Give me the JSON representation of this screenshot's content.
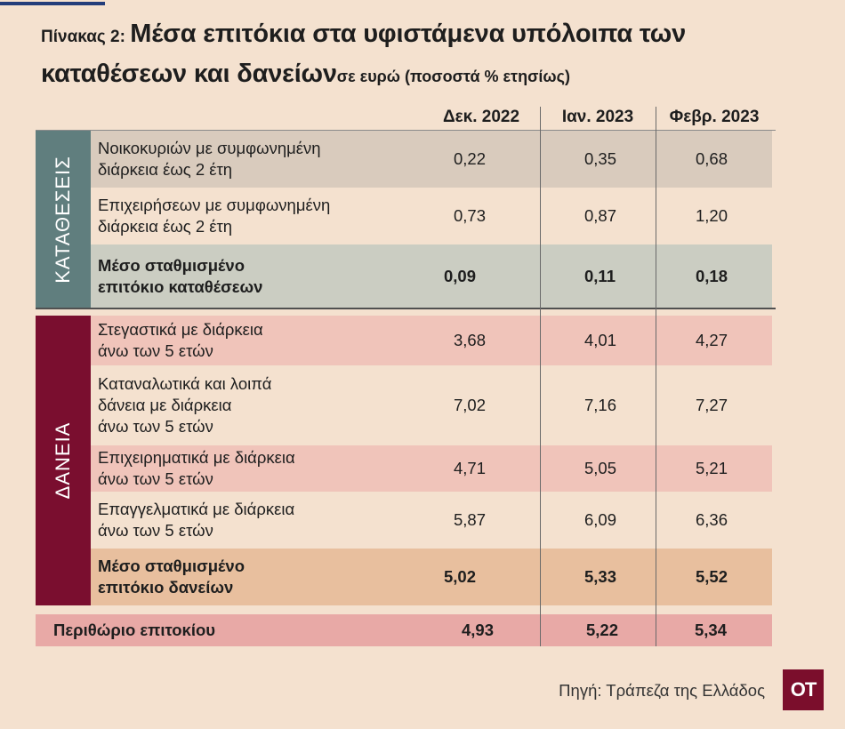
{
  "title": {
    "prefix": "Πίνακας 2: ",
    "main": "Μέσα επιτόκια στα υφιστάμενα υπόλοιπα των καταθέσεων και δανείων",
    "unit": "σε ευρώ (ποσοστά % ετησίως)"
  },
  "colors": {
    "background": "#f4e1cf",
    "deposits_band": "#607e7e",
    "loans_band": "#7a0e2f",
    "deposits_row_grey": "#d9cbbd",
    "deposits_avg_row": "#cbcdc2",
    "loans_row_pink": "#f0c4ba",
    "loans_avg_row": "#e8bf9e",
    "margin_row": "#e8a9a6",
    "title_bar": "#233d7a"
  },
  "chart_data": {
    "type": "table",
    "columns": [
      "Δεκ. 2022",
      "Ιαν. 2023",
      "Φεβρ. 2023"
    ],
    "sections": [
      {
        "name": "ΚΑΤΑΘΕΣΕΙΣ",
        "rows": [
          {
            "label": "Νοικοκυριών με συμφωνημένη διάρκεια έως 2 έτη",
            "label_lines": [
              "Νοικοκυριών με συμφωνημένη",
              "διάρκεια έως 2 έτη"
            ],
            "values": [
              "0,22",
              "0,35",
              "0,68"
            ],
            "bold": false
          },
          {
            "label": "Επιχειρήσεων με συμφωνημένη διάρκεια έως 2 έτη",
            "label_lines": [
              "Επιχειρήσεων με συμφωνημένη",
              "διάρκεια έως 2 έτη"
            ],
            "values": [
              "0,73",
              "0,87",
              "1,20"
            ],
            "bold": false
          },
          {
            "label": "Μέσο σταθμισμένο επιτόκιο καταθέσεων",
            "label_lines": [
              "Μέσο σταθμισμένο",
              "επιτόκιο καταθέσεων"
            ],
            "values": [
              "0,09",
              "0,11",
              "0,18"
            ],
            "bold": true
          }
        ]
      },
      {
        "name": "ΔΑΝΕΙΑ",
        "rows": [
          {
            "label": "Στεγαστικά με διάρκεια άνω των 5 ετών",
            "label_lines": [
              "Στεγαστικά με διάρκεια",
              "άνω των 5 ετών"
            ],
            "values": [
              "3,68",
              "4,01",
              "4,27"
            ],
            "bold": false
          },
          {
            "label": "Καταναλωτικά και λοιπά δάνεια με διάρκεια άνω των 5 ετών",
            "label_lines": [
              "Καταναλωτικά και λοιπά",
              "δάνεια με διάρκεια",
              "άνω των 5 ετών"
            ],
            "values": [
              "7,02",
              "7,16",
              "7,27"
            ],
            "bold": false
          },
          {
            "label": "Επιχειρηματικά με διάρκεια άνω των 5 ετών",
            "label_lines": [
              "Επιχειρηματικά με διάρκεια",
              "άνω των 5 ετών"
            ],
            "values": [
              "4,71",
              "5,05",
              "5,21"
            ],
            "bold": false
          },
          {
            "label": "Επαγγελματικά με διάρκεια άνω των 5 ετών",
            "label_lines": [
              "Επαγγελματικά με διάρκεια",
              "άνω των 5 ετών"
            ],
            "values": [
              "5,87",
              "6,09",
              "6,36"
            ],
            "bold": false
          },
          {
            "label": "Μέσο σταθμισμένο επιτόκιο δανείων",
            "label_lines": [
              "Μέσο σταθμισμένο",
              "επιτόκιο δανείων"
            ],
            "values": [
              "5,02",
              "5,33",
              "5,52"
            ],
            "bold": true
          }
        ]
      }
    ],
    "margin_row": {
      "label": "Περιθώριο επιτοκίου",
      "values": [
        "4,93",
        "5,22",
        "5,34"
      ]
    }
  },
  "source": "Πηγή: Τράπεζα της Ελλάδος",
  "logo": "OT"
}
